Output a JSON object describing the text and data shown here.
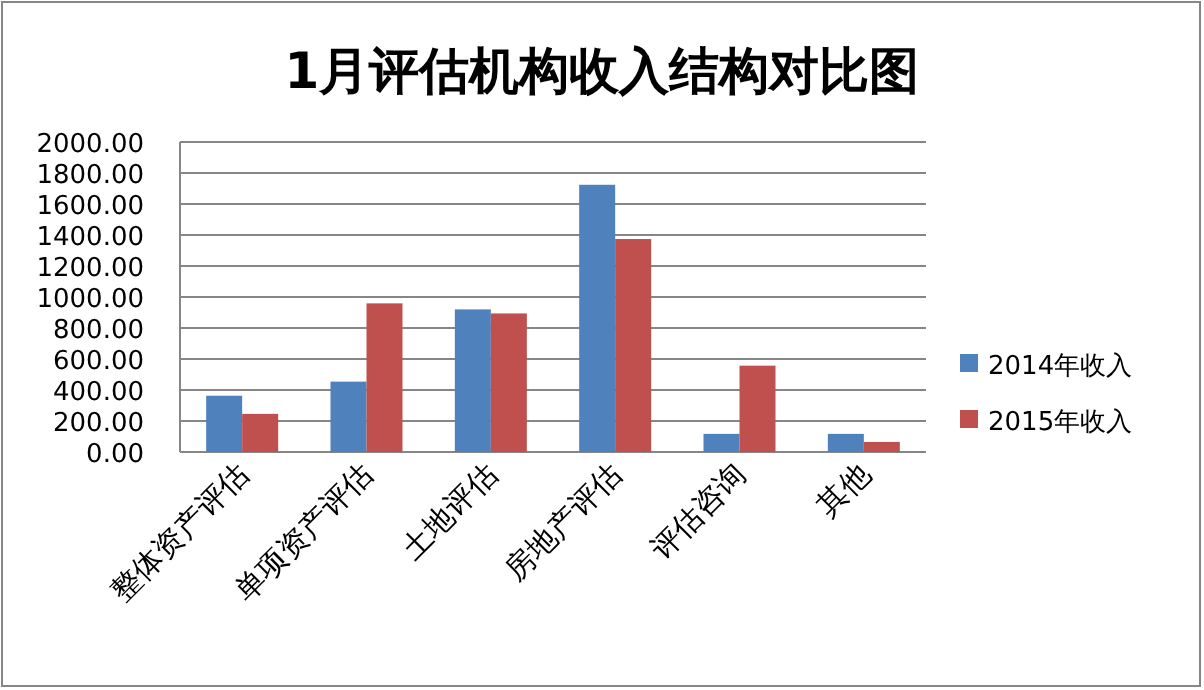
{
  "chart_data": {
    "type": "bar",
    "title": "1月评估机构收入结构对比图",
    "categories": [
      "整体资产评估",
      "单项资产评估",
      "土地评估",
      "房地产评估",
      "评估咨询",
      "其他"
    ],
    "series": [
      {
        "name": "2014年收入",
        "color": "#4f81bd",
        "values": [
          363,
          454,
          920,
          1724,
          117,
          117
        ]
      },
      {
        "name": "2015年收入",
        "color": "#c0504d",
        "values": [
          246,
          959,
          894,
          1374,
          557,
          65
        ]
      }
    ],
    "ylim": [
      0,
      2000
    ],
    "yticks": [
      {
        "value": 0,
        "label": "0.00"
      },
      {
        "value": 200,
        "label": "200.00"
      },
      {
        "value": 400,
        "label": "400.00"
      },
      {
        "value": 600,
        "label": "600.00"
      },
      {
        "value": 800,
        "label": "800.00"
      },
      {
        "value": 1000,
        "label": "1000.00"
      },
      {
        "value": 1200,
        "label": "1200.00"
      },
      {
        "value": 1400,
        "label": "1400.00"
      },
      {
        "value": 1600,
        "label": "1600.00"
      },
      {
        "value": 1800,
        "label": "1800.00"
      },
      {
        "value": 2000,
        "label": "2000.00"
      }
    ],
    "grid": "y",
    "legend": "right"
  }
}
